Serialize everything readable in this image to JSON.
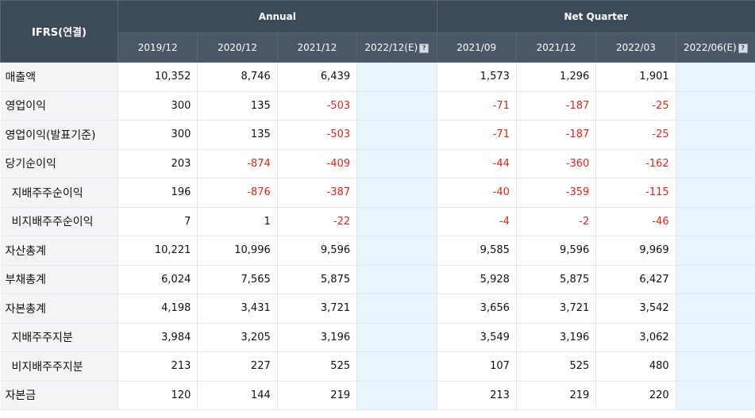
{
  "header": {
    "standard_label": "IFRS(연결)",
    "annual_label": "Annual",
    "quarter_label": "Net Quarter",
    "estimate_icon": "question-icon",
    "annual_periods": [
      "2019/12",
      "2020/12",
      "2021/12",
      "2022/12(E)"
    ],
    "quarter_periods": [
      "2021/09",
      "2021/12",
      "2022/03",
      "2022/06(E)"
    ]
  },
  "rows": [
    {
      "label": "매출액",
      "indent": false,
      "annual": [
        "10,352",
        "8,746",
        "6,439",
        ""
      ],
      "quarter": [
        "1,573",
        "1,296",
        "1,901",
        ""
      ]
    },
    {
      "label": "영업이익",
      "indent": false,
      "annual": [
        "300",
        "135",
        "-503",
        ""
      ],
      "quarter": [
        "-71",
        "-187",
        "-25",
        ""
      ]
    },
    {
      "label": "영업이익(발표기준)",
      "indent": false,
      "annual": [
        "300",
        "135",
        "-503",
        ""
      ],
      "quarter": [
        "-71",
        "-187",
        "-25",
        ""
      ]
    },
    {
      "label": "당기순이익",
      "indent": false,
      "annual": [
        "203",
        "-874",
        "-409",
        ""
      ],
      "quarter": [
        "-44",
        "-360",
        "-162",
        ""
      ]
    },
    {
      "label": "지배주주순이익",
      "indent": true,
      "annual": [
        "196",
        "-876",
        "-387",
        ""
      ],
      "quarter": [
        "-40",
        "-359",
        "-115",
        ""
      ]
    },
    {
      "label": "비지배주주순이익",
      "indent": true,
      "annual": [
        "7",
        "1",
        "-22",
        ""
      ],
      "quarter": [
        "-4",
        "-2",
        "-46",
        ""
      ]
    },
    {
      "label": "자산총계",
      "indent": false,
      "annual": [
        "10,221",
        "10,996",
        "9,596",
        ""
      ],
      "quarter": [
        "9,585",
        "9,596",
        "9,969",
        ""
      ]
    },
    {
      "label": "부채총계",
      "indent": false,
      "annual": [
        "6,024",
        "7,565",
        "5,875",
        ""
      ],
      "quarter": [
        "5,928",
        "5,875",
        "6,427",
        ""
      ]
    },
    {
      "label": "자본총계",
      "indent": false,
      "annual": [
        "4,198",
        "3,431",
        "3,721",
        ""
      ],
      "quarter": [
        "3,656",
        "3,721",
        "3,542",
        ""
      ]
    },
    {
      "label": "지배주주지분",
      "indent": true,
      "annual": [
        "3,984",
        "3,205",
        "3,196",
        ""
      ],
      "quarter": [
        "3,549",
        "3,196",
        "3,062",
        ""
      ]
    },
    {
      "label": "비지배주주지분",
      "indent": true,
      "annual": [
        "213",
        "227",
        "525",
        ""
      ],
      "quarter": [
        "107",
        "525",
        "480",
        ""
      ]
    },
    {
      "label": "자본금",
      "indent": false,
      "annual": [
        "120",
        "144",
        "219",
        ""
      ],
      "quarter": [
        "213",
        "219",
        "220",
        ""
      ]
    }
  ],
  "colors": {
    "header_bg": "#3d4a5a",
    "negative": "#e3231a",
    "estimate_bg": "#e9f5fc"
  }
}
